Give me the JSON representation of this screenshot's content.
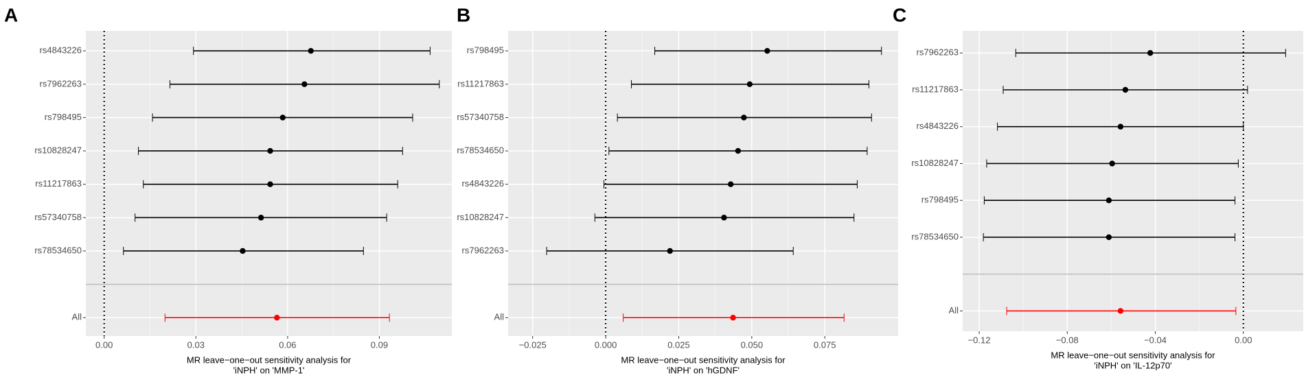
{
  "chart_data": [
    {
      "type": "forest",
      "panel": "A",
      "xlabel": [
        "MR leave−one−out sensitivity analysis for",
        "'iNPH' on 'MMP-1'"
      ],
      "categories": [
        "rs4843226",
        "rs7962263",
        "rs798495",
        "rs10828247",
        "rs11217863",
        "rs57340758",
        "rs78534650"
      ],
      "values": [
        0.0676,
        0.0655,
        0.0584,
        0.0543,
        0.0543,
        0.0513,
        0.0453
      ],
      "ci_low": [
        0.0292,
        0.0215,
        0.0158,
        0.0112,
        0.0128,
        0.0101,
        0.0063
      ],
      "ci_high": [
        0.1066,
        0.1096,
        0.1009,
        0.0976,
        0.096,
        0.0924,
        0.0848
      ],
      "color": "#000000",
      "overall": {
        "label": "All",
        "value": 0.0565,
        "ci_low": 0.0199,
        "ci_high": 0.0933,
        "color": "#ff0000"
      },
      "reference": 0,
      "xlim": [
        -0.006,
        0.1137
      ],
      "xticks": [
        {
          "value": 0,
          "label": "0.00"
        },
        0.03,
        0.06,
        0.09
      ],
      "grid": true
    },
    {
      "type": "forest",
      "panel": "B",
      "xlabel": [
        "MR leave−one−out sensitivity analysis for",
        "'iNPH' on 'hGDNF'"
      ],
      "categories": [
        "rs798495",
        "rs11217863",
        "rs57340758",
        "rs78534650",
        "rs4843226",
        "rs10828247",
        "rs7962263"
      ],
      "values": [
        0.0553,
        0.0493,
        0.0473,
        0.0453,
        0.0428,
        0.0405,
        0.022
      ],
      "ci_low": [
        0.0168,
        0.0088,
        0.004,
        0.0011,
        -0.0006,
        -0.0037,
        -0.0202
      ],
      "ci_high": [
        0.0944,
        0.0901,
        0.091,
        0.0895,
        0.0861,
        0.085,
        0.0642
      ],
      "color": "#000000",
      "overall": {
        "label": "All",
        "value": 0.0436,
        "ci_low": 0.006,
        "ci_high": 0.0816,
        "color": "#ff0000"
      },
      "reference": 0,
      "xlim": [
        -0.0334,
        0.1001
      ],
      "xticks": [
        {
          "value": -0.025,
          "label": "−0.025"
        },
        {
          "value": 0,
          "label": "0.000"
        },
        0.025,
        {
          "value": 0.05,
          "label": "0.050"
        },
        0.075
      ],
      "grid": true
    },
    {
      "type": "forest",
      "panel": "C",
      "xlabel": [
        "MR leave−one−out sensitivity analysis for",
        "'iNPH' on 'IL-12p70'"
      ],
      "categories": [
        "rs7962263",
        "rs11217863",
        "rs4843226",
        "rs10828247",
        "rs798495",
        "rs78534650"
      ],
      "values": [
        -0.0423,
        -0.0536,
        -0.0558,
        -0.0596,
        -0.0611,
        -0.0611
      ],
      "ci_low": [
        -0.1034,
        -0.1091,
        -0.1117,
        -0.1166,
        -0.1177,
        -0.1181
      ],
      "ci_high": [
        0.0192,
        0.0019,
        0,
        -0.0023,
        -0.0038,
        -0.0038
      ],
      "color": "#000000",
      "overall": {
        "label": "All",
        "value": -0.0558,
        "ci_low": -0.1075,
        "ci_high": -0.0034,
        "color": "#ff0000"
      },
      "reference": 0,
      "xlim": [
        -0.1275,
        0.0272
      ],
      "xticks": [
        {
          "value": -0.12,
          "label": "−0.12"
        },
        {
          "value": -0.08,
          "label": "−0.08"
        },
        {
          "value": -0.04,
          "label": "−0.04"
        },
        {
          "value": 0,
          "label": "0.00"
        }
      ],
      "grid": true
    }
  ]
}
